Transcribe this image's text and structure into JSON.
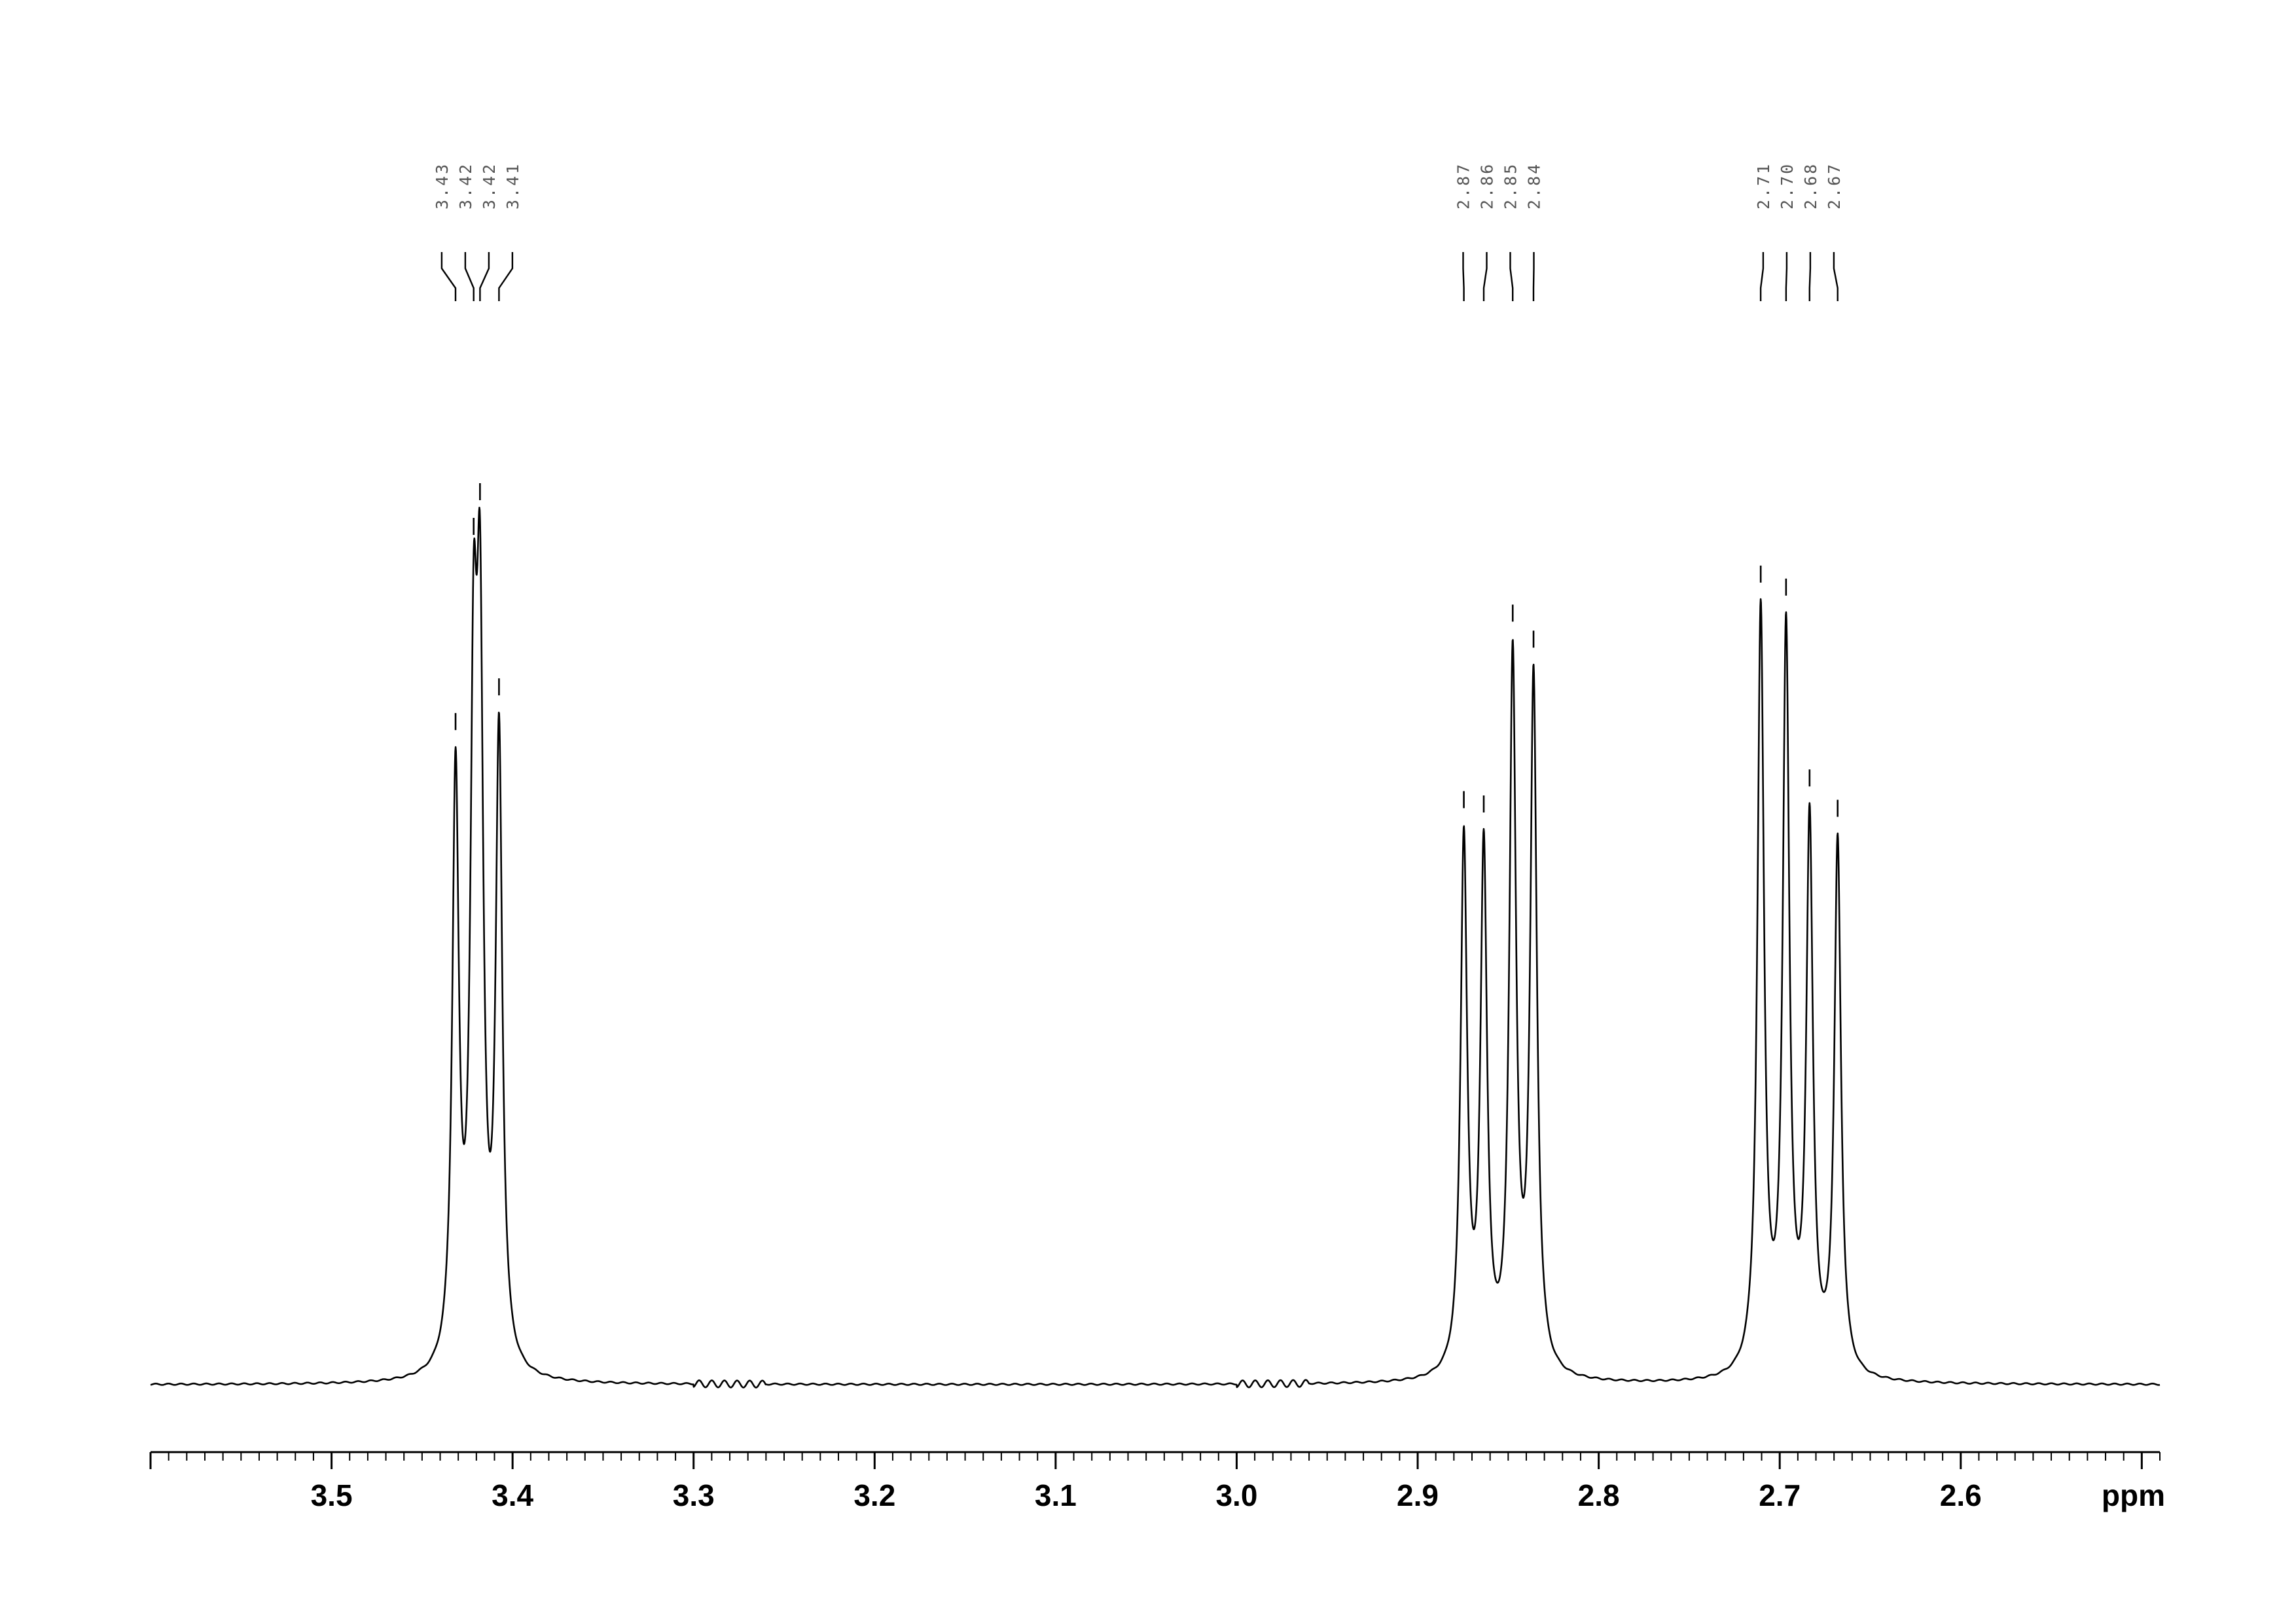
{
  "chart_data": {
    "type": "line",
    "title": "",
    "xlabel": "ppm",
    "ylabel": "",
    "x_reversed": true,
    "xlim": [
      3.6,
      2.49
    ],
    "x_ticks": [
      {
        "value": 3.5,
        "label": "3.5"
      },
      {
        "value": 3.4,
        "label": "3.4"
      },
      {
        "value": 3.3,
        "label": "3.3"
      },
      {
        "value": 3.2,
        "label": "3.2"
      },
      {
        "value": 3.1,
        "label": "3.1"
      },
      {
        "value": 3.0,
        "label": "3.0"
      },
      {
        "value": 2.9,
        "label": "2.9"
      },
      {
        "value": 2.8,
        "label": "2.8"
      },
      {
        "value": 2.7,
        "label": "2.7"
      },
      {
        "value": 2.6,
        "label": "2.6"
      }
    ],
    "minor_tick_step": 0.01,
    "grid": false,
    "peak_labels": [
      {
        "label": "3.43",
        "shift": 3.4315,
        "intensity": 0.735
      },
      {
        "label": "3.42",
        "shift": 3.4215,
        "intensity": 0.96
      },
      {
        "label": "3.42",
        "shift": 3.418,
        "intensity": 1.0
      },
      {
        "label": "3.41",
        "shift": 3.4075,
        "intensity": 0.775
      },
      {
        "label": "2.87",
        "shift": 2.8745,
        "intensity": 0.645
      },
      {
        "label": "2.86",
        "shift": 2.8635,
        "intensity": 0.64
      },
      {
        "label": "2.85",
        "shift": 2.8475,
        "intensity": 0.86
      },
      {
        "label": "2.84",
        "shift": 2.836,
        "intensity": 0.83
      },
      {
        "label": "2.71",
        "shift": 2.7105,
        "intensity": 0.905
      },
      {
        "label": "2.70",
        "shift": 2.6965,
        "intensity": 0.89
      },
      {
        "label": "2.68",
        "shift": 2.6835,
        "intensity": 0.67
      },
      {
        "label": "2.67",
        "shift": 2.668,
        "intensity": 0.635
      }
    ],
    "line_color": "#000000"
  }
}
